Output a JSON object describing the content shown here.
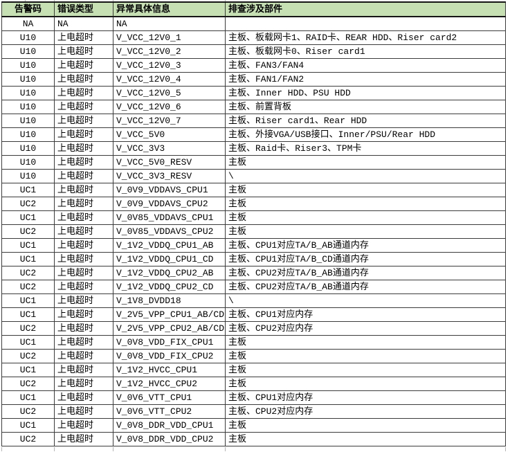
{
  "table": {
    "columns": [
      {
        "key": "code",
        "label": "告警码"
      },
      {
        "key": "type",
        "label": "错误类型"
      },
      {
        "key": "detail",
        "label": "异常具体信息"
      },
      {
        "key": "parts",
        "label": "排查涉及部件"
      }
    ],
    "header_bg": "#c6e0b4",
    "rows": [
      [
        "NA",
        "NA",
        "NA",
        ""
      ],
      [
        "U10",
        "上电超时",
        "V_VCC_12V0_1",
        "主板、板载网卡1、RAID卡、REAR HDD、Riser card2"
      ],
      [
        "U10",
        "上电超时",
        "V_VCC_12V0_2",
        "主板、板载网卡0、Riser card1"
      ],
      [
        "U10",
        "上电超时",
        "V_VCC_12V0_3",
        "主板、FAN3/FAN4"
      ],
      [
        "U10",
        "上电超时",
        "V_VCC_12V0_4",
        "主板、FAN1/FAN2"
      ],
      [
        "U10",
        "上电超时",
        "V_VCC_12V0_5",
        "主板、Inner HDD、PSU HDD"
      ],
      [
        "U10",
        "上电超时",
        "V_VCC_12V0_6",
        "主板、前置背板"
      ],
      [
        "U10",
        "上电超时",
        "V_VCC_12V0_7",
        "主板、Riser card1、Rear HDD"
      ],
      [
        "U10",
        "上电超时",
        "V_VCC_5V0",
        "主板、外接VGA/USB接口、Inner/PSU/Rear HDD"
      ],
      [
        "U10",
        "上电超时",
        "V_VCC_3V3",
        "主板、Raid卡、Riser3、TPM卡"
      ],
      [
        "U10",
        "上电超时",
        "V_VCC_5V0_RESV",
        "主板"
      ],
      [
        "U10",
        "上电超时",
        "V_VCC_3V3_RESV",
        "\\"
      ],
      [
        "UC1",
        "上电超时",
        "V_0V9_VDDAVS_CPU1",
        "主板"
      ],
      [
        "UC2",
        "上电超时",
        "V_0V9_VDDAVS_CPU2",
        "主板"
      ],
      [
        "UC1",
        "上电超时",
        "V_0V85_VDDAVS_CPU1",
        "主板"
      ],
      [
        "UC2",
        "上电超时",
        "V_0V85_VDDAVS_CPU2",
        "主板"
      ],
      [
        "UC1",
        "上电超时",
        "V_1V2_VDDQ_CPU1_AB",
        "主板、CPU1对应TA/B_AB通道内存"
      ],
      [
        "UC1",
        "上电超时",
        "V_1V2_VDDQ_CPU1_CD",
        "主板、CPU1对应TA/B_CD通道内存"
      ],
      [
        "UC2",
        "上电超时",
        "V_1V2_VDDQ_CPU2_AB",
        "主板、CPU2对应TA/B_AB通道内存"
      ],
      [
        "UC2",
        "上电超时",
        "V_1V2_VDDQ_CPU2_CD",
        "主板、CPU2对应TA/B_AB通道内存"
      ],
      [
        "UC1",
        "上电超时",
        "V_1V8_DVDD18",
        "\\"
      ],
      [
        "UC1",
        "上电超时",
        "V_2V5_VPP_CPU1_AB/CD",
        "主板、CPU1对应内存"
      ],
      [
        "UC2",
        "上电超时",
        "V_2V5_VPP_CPU2_AB/CD",
        "主板、CPU2对应内存"
      ],
      [
        "UC1",
        "上电超时",
        "V_0V8_VDD_FIX_CPU1",
        "主板"
      ],
      [
        "UC2",
        "上电超时",
        "V_0V8_VDD_FIX_CPU2",
        "主板"
      ],
      [
        "UC1",
        "上电超时",
        "V_1V2_HVCC_CPU1",
        "主板"
      ],
      [
        "UC2",
        "上电超时",
        "V_1V2_HVCC_CPU2",
        "主板"
      ],
      [
        "UC1",
        "上电超时",
        "V_0V6_VTT_CPU1",
        "主板、CPU1对应内存"
      ],
      [
        "UC2",
        "上电超时",
        "V_0V6_VTT_CPU2",
        "主板、CPU2对应内存"
      ],
      [
        "UC1",
        "上电超时",
        "V_0V8_DDR_VDD_CPU1",
        "主板"
      ],
      [
        "UC2",
        "上电超时",
        "V_0V8_DDR_VDD_CPU2",
        "主板"
      ]
    ]
  }
}
